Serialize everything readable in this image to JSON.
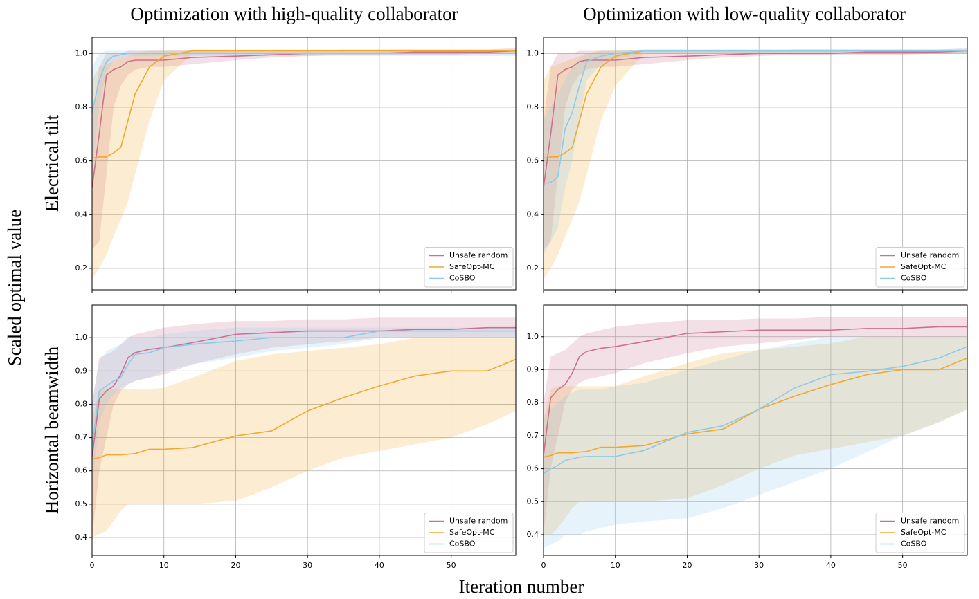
{
  "column_titles": [
    "Optimization with high-quality collaborator",
    "Optimization with low-quality collaborator"
  ],
  "row_labels": [
    "Electrical tilt",
    "Horizontal beamwidth"
  ],
  "ylabel": "Scaled optimal value",
  "xlabel": "Iteration number",
  "chart_data": [
    {
      "type": "line",
      "x": [
        0,
        1,
        2,
        3,
        4,
        5,
        6,
        8,
        10,
        14,
        20,
        25,
        30,
        35,
        40,
        45,
        50,
        55,
        59
      ],
      "xlim": [
        0,
        59
      ],
      "xticks": [
        0,
        10,
        20,
        30,
        40,
        50
      ],
      "ylim": [
        0.12,
        1.06
      ],
      "yticks": [
        0.2,
        0.4,
        0.6,
        0.8,
        {
          "value": 1,
          "label": "1.0"
        }
      ],
      "grid": true,
      "legend": "lower right",
      "series": [
        {
          "name": "Unsafe random",
          "color": "#c9718f",
          "values": [
            0.5,
            0.7,
            0.92,
            0.94,
            0.95,
            0.97,
            0.975,
            0.975,
            0.975,
            0.985,
            0.99,
            0.995,
            1.0,
            1.0,
            1.0,
            1.005,
            1.005,
            1.005,
            1.01
          ],
          "lower": [
            0.27,
            0.3,
            0.55,
            0.8,
            0.88,
            0.92,
            0.94,
            0.95,
            0.95,
            0.96,
            0.975,
            0.985,
            0.99,
            0.995,
            0.995,
            0.995,
            0.995,
            1.0,
            1.0
          ],
          "upper": [
            0.75,
            0.95,
            1.0,
            1.0,
            1.0,
            1.01,
            1.01,
            1.01,
            1.01,
            1.01,
            1.01,
            1.01,
            1.01,
            1.015,
            1.015,
            1.015,
            1.015,
            1.015,
            1.02
          ]
        },
        {
          "name": "SafeOpt-MC",
          "color": "#f0a830",
          "values": [
            0.61,
            0.615,
            0.615,
            0.63,
            0.65,
            0.75,
            0.85,
            0.95,
            0.99,
            1.01,
            1.01,
            1.01,
            1.01,
            1.01,
            1.01,
            1.01,
            1.01,
            1.01,
            1.01
          ],
          "lower": [
            0.16,
            0.2,
            0.25,
            0.32,
            0.38,
            0.45,
            0.55,
            0.75,
            0.9,
            1.0,
            1.0,
            1.0,
            1.0,
            1.0,
            1.0,
            1.0,
            1.0,
            1.0,
            1.0
          ],
          "upper": [
            0.9,
            0.95,
            0.96,
            0.97,
            0.98,
            0.99,
            1.0,
            1.01,
            1.01,
            1.015,
            1.015,
            1.015,
            1.015,
            1.015,
            1.015,
            1.015,
            1.015,
            1.015,
            1.015
          ]
        },
        {
          "name": "CoSBO",
          "color": "#8ecae6",
          "values": [
            0.78,
            0.9,
            0.97,
            0.99,
            0.995,
            1.0,
            1.0,
            1.0,
            1.0,
            1.0,
            1.0,
            1.0,
            1.0,
            1.0,
            1.0,
            1.0,
            1.0,
            1.0,
            1.0
          ],
          "lower": [
            0.55,
            0.8,
            0.93,
            0.97,
            0.98,
            0.99,
            0.99,
            0.99,
            0.99,
            0.99,
            0.99,
            0.99,
            0.99,
            0.99,
            0.99,
            0.99,
            0.99,
            0.99,
            0.99
          ],
          "upper": [
            0.95,
            1.0,
            1.01,
            1.01,
            1.01,
            1.01,
            1.01,
            1.01,
            1.01,
            1.01,
            1.01,
            1.01,
            1.01,
            1.01,
            1.01,
            1.01,
            1.01,
            1.01,
            1.01
          ]
        }
      ]
    },
    {
      "type": "line",
      "x": [
        0,
        1,
        2,
        3,
        4,
        5,
        6,
        8,
        10,
        14,
        20,
        25,
        30,
        35,
        40,
        45,
        50,
        55,
        59
      ],
      "xlim": [
        0,
        59
      ],
      "xticks": [
        0,
        10,
        20,
        30,
        40,
        50
      ],
      "ylim": [
        0.12,
        1.06
      ],
      "yticks": [
        0.2,
        0.4,
        0.6,
        0.8,
        {
          "value": 1,
          "label": "1.0"
        }
      ],
      "grid": true,
      "legend": "lower right",
      "series": [
        {
          "name": "Unsafe random",
          "color": "#c9718f",
          "values": [
            0.5,
            0.7,
            0.92,
            0.94,
            0.95,
            0.97,
            0.975,
            0.975,
            0.975,
            0.985,
            0.99,
            0.995,
            1.0,
            1.0,
            1.0,
            1.005,
            1.005,
            1.005,
            1.01
          ],
          "lower": [
            0.27,
            0.3,
            0.55,
            0.8,
            0.88,
            0.92,
            0.94,
            0.95,
            0.95,
            0.96,
            0.975,
            0.985,
            0.99,
            0.995,
            0.995,
            0.995,
            0.995,
            1.0,
            1.0
          ],
          "upper": [
            0.75,
            0.95,
            1.0,
            1.0,
            1.0,
            1.01,
            1.01,
            1.01,
            1.01,
            1.01,
            1.01,
            1.01,
            1.01,
            1.015,
            1.015,
            1.015,
            1.015,
            1.015,
            1.02
          ]
        },
        {
          "name": "SafeOpt-MC",
          "color": "#f0a830",
          "values": [
            0.61,
            0.615,
            0.615,
            0.63,
            0.65,
            0.75,
            0.85,
            0.95,
            0.99,
            1.01,
            1.01,
            1.01,
            1.01,
            1.01,
            1.01,
            1.01,
            1.01,
            1.01,
            1.01
          ],
          "lower": [
            0.16,
            0.2,
            0.25,
            0.32,
            0.38,
            0.45,
            0.55,
            0.75,
            0.88,
            1.0,
            1.0,
            1.0,
            1.0,
            1.0,
            1.0,
            1.0,
            1.0,
            1.0,
            1.0
          ],
          "upper": [
            0.9,
            0.95,
            0.96,
            0.97,
            0.98,
            0.99,
            1.0,
            1.01,
            1.01,
            1.015,
            1.015,
            1.015,
            1.015,
            1.015,
            1.015,
            1.015,
            1.015,
            1.015,
            1.015
          ]
        },
        {
          "name": "CoSBO",
          "color": "#8ecae6",
          "values": [
            0.515,
            0.52,
            0.54,
            0.72,
            0.78,
            0.88,
            0.97,
            0.99,
            1.0,
            1.01,
            1.01,
            1.01,
            1.01,
            1.01,
            1.01,
            1.01,
            1.01,
            1.01,
            1.01
          ],
          "lower": [
            0.25,
            0.3,
            0.35,
            0.5,
            0.6,
            0.75,
            0.9,
            0.96,
            0.98,
            1.0,
            1.0,
            1.0,
            1.0,
            1.0,
            1.0,
            1.0,
            1.0,
            1.0,
            1.0
          ],
          "upper": [
            0.75,
            0.8,
            0.85,
            0.9,
            0.95,
            0.98,
            1.0,
            1.01,
            1.01,
            1.015,
            1.015,
            1.015,
            1.015,
            1.015,
            1.015,
            1.015,
            1.015,
            1.015,
            1.015
          ]
        }
      ]
    },
    {
      "type": "line",
      "x": [
        0,
        1,
        2,
        3,
        4,
        5,
        6,
        8,
        10,
        14,
        20,
        25,
        30,
        35,
        40,
        45,
        50,
        55,
        59
      ],
      "xlim": [
        0,
        59
      ],
      "xticks": [
        0,
        10,
        20,
        30,
        40,
        50
      ],
      "ylim": [
        0.346,
        1.098
      ],
      "yticks": [
        0.4,
        0.5,
        0.6,
        0.7,
        0.8,
        0.9,
        {
          "value": 1,
          "label": "1.0"
        }
      ],
      "grid": true,
      "legend": "lower right",
      "series": [
        {
          "name": "Unsafe random",
          "color": "#c9718f",
          "values": [
            0.64,
            0.815,
            0.84,
            0.855,
            0.89,
            0.94,
            0.955,
            0.965,
            0.97,
            0.985,
            1.01,
            1.015,
            1.02,
            1.02,
            1.02,
            1.025,
            1.025,
            1.03,
            1.03
          ],
          "lower": [
            0.4,
            0.6,
            0.7,
            0.8,
            0.84,
            0.86,
            0.87,
            0.88,
            0.89,
            0.92,
            0.95,
            0.97,
            0.98,
            0.99,
            1.0,
            1.0,
            1.0,
            1.0,
            1.0
          ],
          "upper": [
            0.8,
            0.94,
            0.95,
            0.96,
            0.98,
            1.0,
            1.01,
            1.02,
            1.03,
            1.04,
            1.05,
            1.05,
            1.055,
            1.055,
            1.06,
            1.06,
            1.06,
            1.06,
            1.06
          ]
        },
        {
          "name": "SafeOpt-MC",
          "color": "#f0a830",
          "values": [
            0.635,
            0.64,
            0.648,
            0.648,
            0.648,
            0.65,
            0.652,
            0.665,
            0.665,
            0.67,
            0.705,
            0.72,
            0.78,
            0.82,
            0.855,
            0.885,
            0.9,
            0.9,
            0.935
          ],
          "lower": [
            0.4,
            0.41,
            0.42,
            0.45,
            0.48,
            0.5,
            0.5,
            0.5,
            0.5,
            0.5,
            0.51,
            0.55,
            0.6,
            0.64,
            0.66,
            0.68,
            0.7,
            0.74,
            0.78
          ],
          "upper": [
            0.75,
            0.84,
            0.845,
            0.845,
            0.845,
            0.845,
            0.845,
            0.845,
            0.85,
            0.88,
            0.93,
            0.95,
            0.96,
            0.97,
            0.98,
            1.0,
            1.0,
            1.0,
            1.0
          ]
        },
        {
          "name": "CoSBO",
          "color": "#8ecae6",
          "values": [
            0.67,
            0.84,
            0.855,
            0.87,
            0.88,
            0.92,
            0.95,
            0.955,
            0.97,
            0.98,
            0.99,
            1.0,
            1.0,
            1.0,
            1.02,
            1.02,
            1.02,
            1.02,
            1.02
          ],
          "lower": [
            0.55,
            0.75,
            0.8,
            0.83,
            0.85,
            0.86,
            0.87,
            0.88,
            0.9,
            0.92,
            0.94,
            0.96,
            0.97,
            0.98,
            1.0,
            1.0,
            1.0,
            1.0,
            1.0
          ],
          "upper": [
            0.8,
            0.93,
            0.96,
            0.97,
            0.98,
            1.0,
            1.0,
            1.0,
            1.01,
            1.02,
            1.03,
            1.03,
            1.03,
            1.03,
            1.03,
            1.03,
            1.03,
            1.03,
            1.03
          ]
        }
      ]
    },
    {
      "type": "line",
      "x": [
        0,
        1,
        2,
        3,
        4,
        5,
        6,
        8,
        10,
        14,
        20,
        25,
        30,
        35,
        40,
        45,
        50,
        55,
        59
      ],
      "xlim": [
        0,
        59
      ],
      "xticks": [
        0,
        10,
        20,
        30,
        40,
        50
      ],
      "ylim": [
        0.337,
        1.096
      ],
      "yticks": [
        0.4,
        0.5,
        0.6,
        0.7,
        0.8,
        0.9,
        {
          "value": 1,
          "label": "1.0"
        }
      ],
      "grid": true,
      "legend": "lower right",
      "series": [
        {
          "name": "Unsafe random",
          "color": "#c9718f",
          "values": [
            0.64,
            0.815,
            0.84,
            0.855,
            0.89,
            0.94,
            0.955,
            0.965,
            0.97,
            0.985,
            1.01,
            1.015,
            1.02,
            1.02,
            1.02,
            1.025,
            1.025,
            1.03,
            1.03
          ],
          "lower": [
            0.4,
            0.6,
            0.7,
            0.8,
            0.84,
            0.86,
            0.87,
            0.88,
            0.89,
            0.92,
            0.95,
            0.97,
            0.98,
            0.99,
            1.0,
            1.0,
            1.0,
            1.0,
            1.0
          ],
          "upper": [
            0.8,
            0.94,
            0.95,
            0.96,
            0.98,
            1.0,
            1.01,
            1.02,
            1.03,
            1.04,
            1.05,
            1.05,
            1.055,
            1.055,
            1.06,
            1.06,
            1.06,
            1.06,
            1.06
          ]
        },
        {
          "name": "SafeOpt-MC",
          "color": "#f0a830",
          "values": [
            0.635,
            0.64,
            0.648,
            0.648,
            0.648,
            0.65,
            0.652,
            0.665,
            0.665,
            0.67,
            0.705,
            0.72,
            0.78,
            0.82,
            0.855,
            0.885,
            0.9,
            0.9,
            0.935
          ],
          "lower": [
            0.4,
            0.4,
            0.42,
            0.45,
            0.48,
            0.5,
            0.5,
            0.5,
            0.5,
            0.5,
            0.51,
            0.55,
            0.6,
            0.64,
            0.66,
            0.68,
            0.7,
            0.74,
            0.78
          ],
          "upper": [
            0.75,
            0.84,
            0.85,
            0.85,
            0.85,
            0.85,
            0.85,
            0.85,
            0.85,
            0.88,
            0.92,
            0.95,
            0.96,
            0.97,
            0.98,
            1.0,
            1.0,
            1.0,
            1.0
          ]
        },
        {
          "name": "CoSBO",
          "color": "#8ecae6",
          "values": [
            0.585,
            0.6,
            0.61,
            0.625,
            0.63,
            0.635,
            0.637,
            0.637,
            0.637,
            0.655,
            0.71,
            0.73,
            0.78,
            0.845,
            0.885,
            0.895,
            0.91,
            0.935,
            0.97
          ],
          "lower": [
            0.36,
            0.37,
            0.38,
            0.4,
            0.4,
            0.4,
            0.41,
            0.42,
            0.43,
            0.44,
            0.45,
            0.48,
            0.52,
            0.56,
            0.6,
            0.65,
            0.7,
            0.74,
            0.78
          ],
          "upper": [
            0.75,
            0.78,
            0.8,
            0.82,
            0.83,
            0.84,
            0.84,
            0.84,
            0.85,
            0.86,
            0.9,
            0.93,
            0.96,
            0.98,
            1.0,
            1.0,
            1.0,
            1.0,
            1.0
          ]
        }
      ]
    }
  ]
}
